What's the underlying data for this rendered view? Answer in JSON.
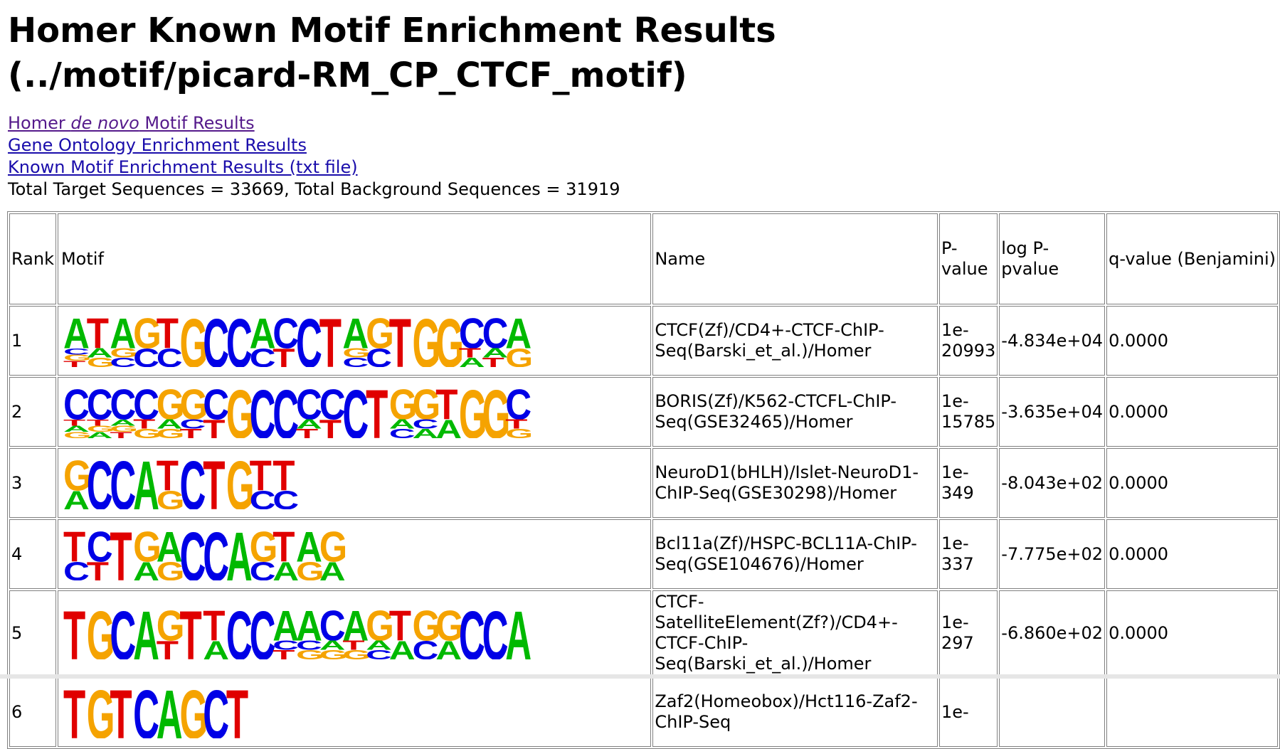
{
  "title": "Homer Known Motif Enrichment Results (../motif/picard-RM_CP_CTCF_motif)",
  "links": {
    "denovo_prefix": "Homer ",
    "denovo_em": "de novo",
    "denovo_suffix": " Motif Results",
    "go": "Gene Ontology Enrichment Results",
    "txt": "Known Motif Enrichment Results (txt file)"
  },
  "totals": "Total Target Sequences = 33669, Total Background Sequences = 31919",
  "table": {
    "headers": {
      "rank": "Rank",
      "motif": "Motif",
      "name": "Name",
      "pvalue": "P-value",
      "logp": "log P-pvalue",
      "qvalue": "q-value (Benjamini)"
    },
    "rows": [
      {
        "rank": "1",
        "name": "CTCF(Zf)/CD4+-CTCF-ChIP-Seq(Barski_et_al.)/Homer",
        "pvalue": "1e-20993",
        "logp": "-4.834e+04",
        "qvalue": "0.0000",
        "motif": [
          [
            "A",
            "C",
            "G",
            "T"
          ],
          [
            "T",
            "A",
            "G"
          ],
          [
            "A",
            "G",
            "C"
          ],
          [
            "G",
            "C"
          ],
          [
            "T",
            "C"
          ],
          [
            "G"
          ],
          [
            "C"
          ],
          [
            "C"
          ],
          [
            "A",
            "C"
          ],
          [
            "C",
            "T"
          ],
          [
            "C"
          ],
          [
            "T"
          ],
          [
            "A",
            "G",
            "C"
          ],
          [
            "G",
            "C"
          ],
          [
            "T"
          ],
          [
            "G"
          ],
          [
            "G"
          ],
          [
            "C",
            "T",
            "A"
          ],
          [
            "C",
            "A",
            "T"
          ],
          [
            "A",
            "G"
          ]
        ]
      },
      {
        "rank": "2",
        "name": "BORIS(Zf)/K562-CTCFL-ChIP-Seq(GSE32465)/Homer",
        "pvalue": "1e-15785",
        "logp": "-3.635e+04",
        "qvalue": "0.0000",
        "motif": [
          [
            "C",
            "T",
            "A",
            "G"
          ],
          [
            "C",
            "T",
            "G",
            "A"
          ],
          [
            "C",
            "A",
            "G",
            "T"
          ],
          [
            "C",
            "T",
            "G"
          ],
          [
            "G",
            "A",
            "G"
          ],
          [
            "G",
            "C",
            "T"
          ],
          [
            "C",
            "T"
          ],
          [
            "G"
          ],
          [
            "C"
          ],
          [
            "C"
          ],
          [
            "C",
            "A",
            "T"
          ],
          [
            "C",
            "T"
          ],
          [
            "C"
          ],
          [
            "T"
          ],
          [
            "G",
            "A",
            "C"
          ],
          [
            "G",
            "C",
            "A"
          ],
          [
            "T",
            "A"
          ],
          [
            "G"
          ],
          [
            "G"
          ],
          [
            "C",
            "T",
            "G"
          ]
        ]
      },
      {
        "rank": "3",
        "name": "NeuroD1(bHLH)/Islet-NeuroD1-ChIP-Seq(GSE30298)/Homer",
        "pvalue": "1e-349",
        "logp": "-8.043e+02",
        "qvalue": "0.0000",
        "motif": [
          [
            "G",
            "A"
          ],
          [
            "C"
          ],
          [
            "C"
          ],
          [
            "A"
          ],
          [
            "T",
            "G"
          ],
          [
            "C"
          ],
          [
            "T"
          ],
          [
            "G"
          ],
          [
            "T",
            "C"
          ],
          [
            "T",
            "C"
          ]
        ]
      },
      {
        "rank": "4",
        "name": "Bcl11a(Zf)/HSPC-BCL11A-ChIP-Seq(GSE104676)/Homer",
        "pvalue": "1e-337",
        "logp": "-7.775e+02",
        "qvalue": "0.0000",
        "motif": [
          [
            "T",
            "C"
          ],
          [
            "C",
            "T"
          ],
          [
            "T"
          ],
          [
            "G",
            "A"
          ],
          [
            "A",
            "G"
          ],
          [
            "C"
          ],
          [
            "C"
          ],
          [
            "A"
          ],
          [
            "G",
            "C"
          ],
          [
            "T",
            "A"
          ],
          [
            "A",
            "G"
          ],
          [
            "G",
            "A"
          ]
        ]
      },
      {
        "rank": "5",
        "name": "CTCF-SatelliteElement(Zf?)/CD4+-CTCF-ChIP-Seq(Barski_et_al.)/Homer",
        "pvalue": "1e-297",
        "logp": "-6.860e+02",
        "qvalue": "0.0000",
        "motif": [
          [
            "T"
          ],
          [
            "G"
          ],
          [
            "C"
          ],
          [
            "A"
          ],
          [
            "G",
            "T"
          ],
          [
            "T"
          ],
          [
            "T",
            "A"
          ],
          [
            "C"
          ],
          [
            "C"
          ],
          [
            "A",
            "C",
            "T"
          ],
          [
            "A",
            "C",
            "G"
          ],
          [
            "C",
            "A",
            "G"
          ],
          [
            "A",
            "T",
            "G"
          ],
          [
            "G",
            "A",
            "C"
          ],
          [
            "T",
            "A"
          ],
          [
            "G",
            "C"
          ],
          [
            "G",
            "A"
          ],
          [
            "C"
          ],
          [
            "C"
          ],
          [
            "A"
          ]
        ]
      },
      {
        "rank": "6",
        "name": "Zaf2(Homeobox)/Hct116-Zaf2-ChIP-Seq",
        "pvalue": "1e-",
        "logp": "",
        "qvalue": "",
        "motif": [
          [
            "T"
          ],
          [
            "G"
          ],
          [
            "T"
          ],
          [
            "C"
          ],
          [
            "A"
          ],
          [
            "G"
          ],
          [
            "C"
          ],
          [
            "T"
          ]
        ]
      }
    ]
  },
  "colors": {
    "A": "#00b900",
    "C": "#0000e6",
    "G": "#f5a300",
    "T": "#e00000",
    "link": "#1a0dab",
    "visited": "#551a8b",
    "border": "#808080"
  }
}
